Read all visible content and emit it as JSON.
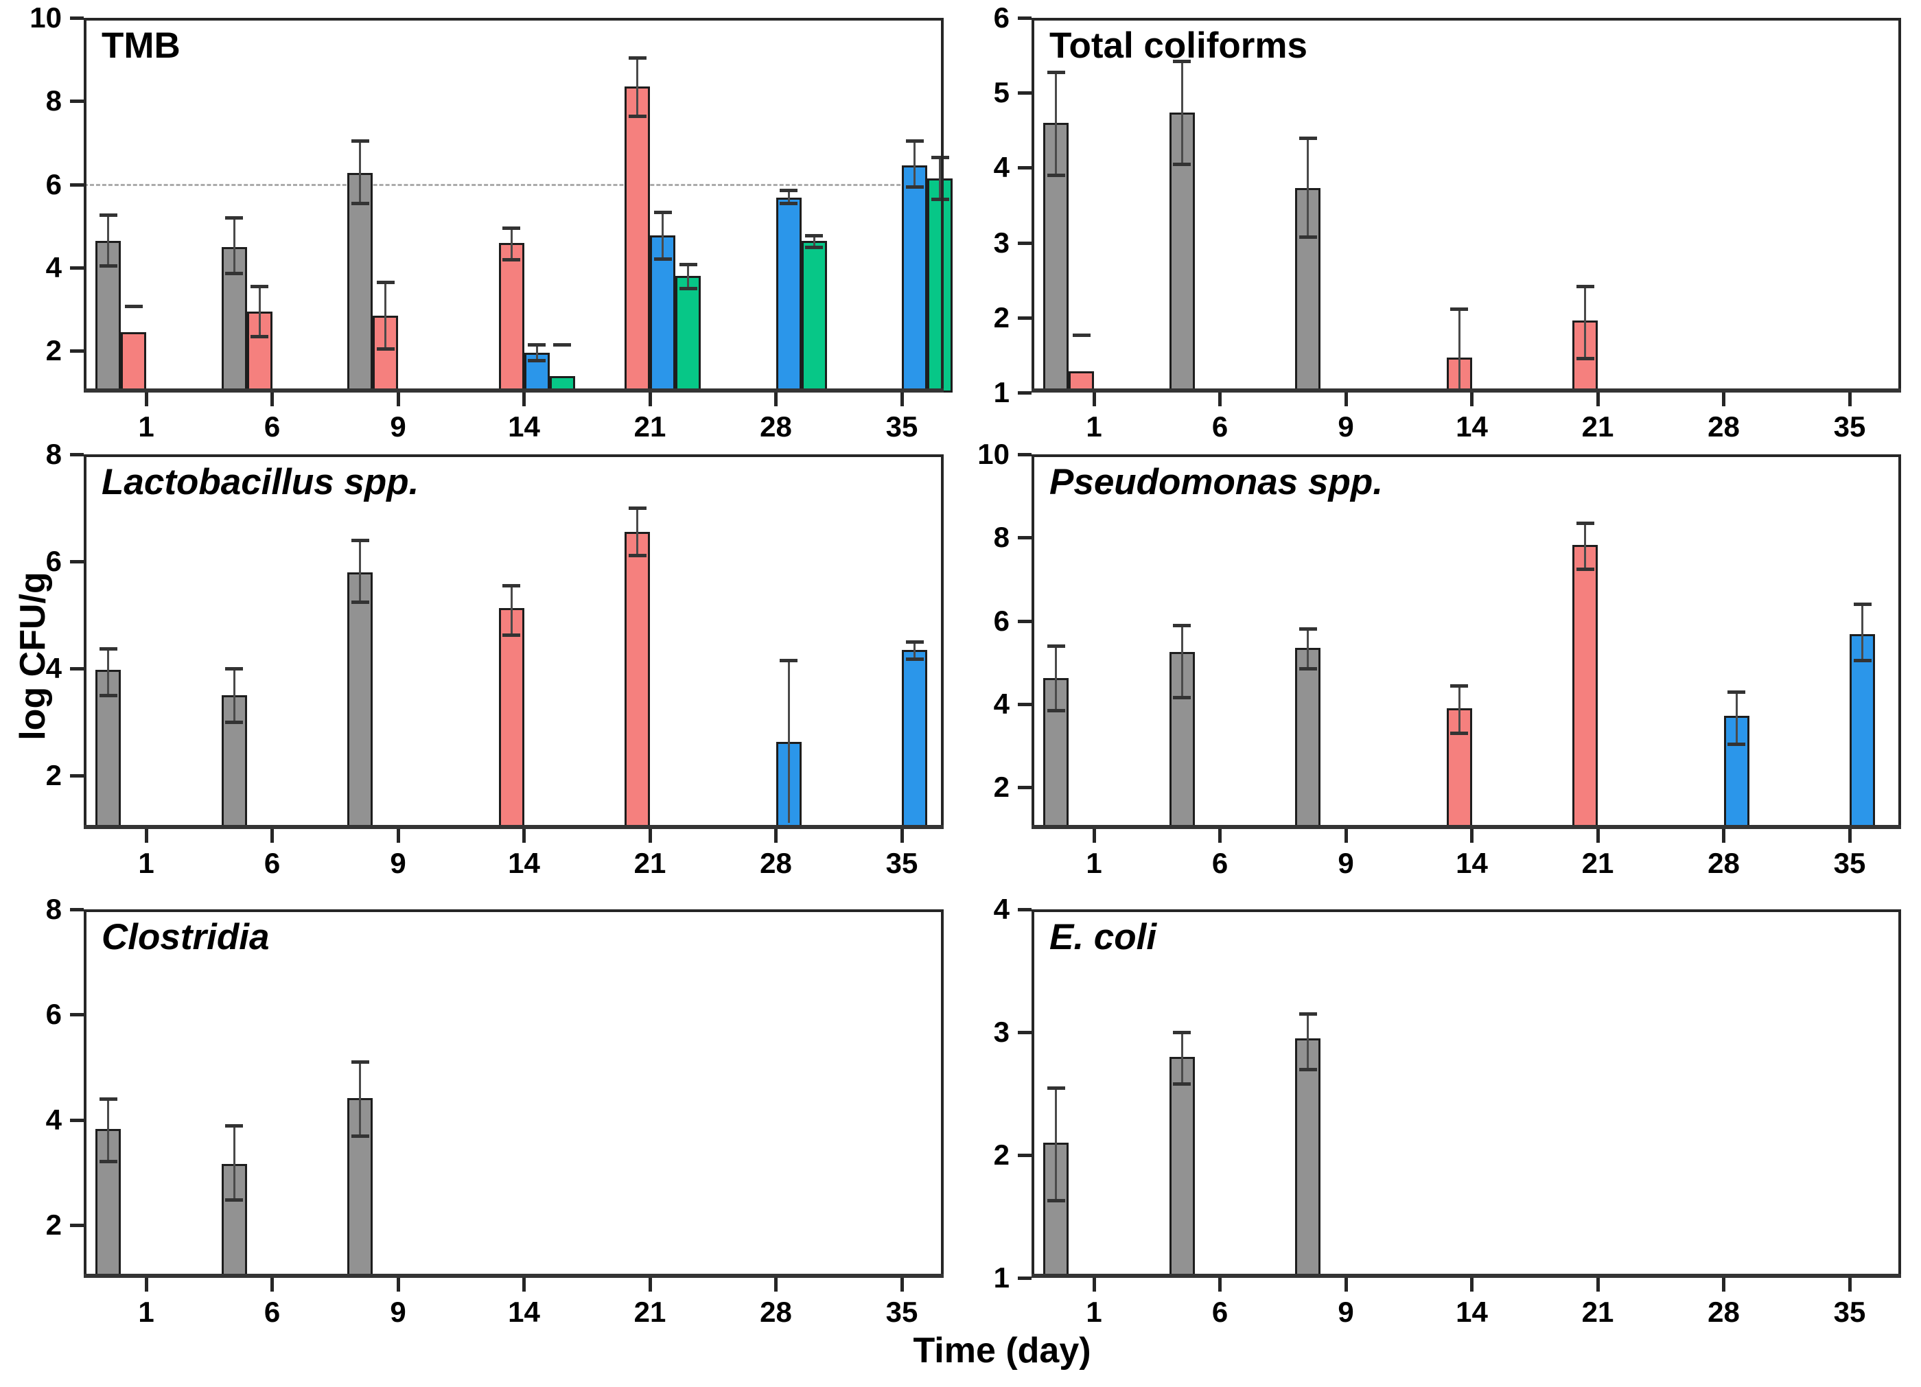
{
  "figure": {
    "ylabel": "log CFU/g",
    "xlabel": "Time (day)"
  },
  "chart_data": {
    "type": "bar",
    "layout": "3-rows-2-cols-grid",
    "title": "",
    "xlabel": "Time (day)",
    "ylabel": "log CFU/g",
    "categories": [
      1,
      6,
      9,
      14,
      21,
      28,
      35
    ],
    "grid": "off",
    "legend": "none",
    "series": [
      {
        "key": "gray",
        "color": "#929292"
      },
      {
        "key": "red",
        "color": "#F5807E"
      },
      {
        "key": "blue",
        "color": "#2B96EA"
      },
      {
        "key": "green",
        "color": "#07C787"
      }
    ],
    "refline_color": "#ababab",
    "panels": [
      {
        "title": "TMB",
        "italic": false,
        "row": 0,
        "col": 0,
        "ylim": [
          1,
          10
        ],
        "yticks": [
          2,
          4,
          6,
          8,
          10
        ],
        "refline": 6,
        "bars": [
          {
            "day": 1,
            "series": "gray",
            "value": 4.65,
            "err_lo": 4.05,
            "err_hi": 5.27
          },
          {
            "day": 1,
            "series": "red",
            "value": 2.45,
            "err_hi": 3.08,
            "cap_only": true
          },
          {
            "day": 6,
            "series": "gray",
            "value": 4.5,
            "err_lo": 3.87,
            "err_hi": 5.2
          },
          {
            "day": 6,
            "series": "red",
            "value": 2.95,
            "err_lo": 2.35,
            "err_hi": 3.55
          },
          {
            "day": 9,
            "series": "gray",
            "value": 6.28,
            "err_lo": 5.55,
            "err_hi": 7.05
          },
          {
            "day": 9,
            "series": "red",
            "value": 2.85,
            "err_lo": 2.05,
            "err_hi": 3.65
          },
          {
            "day": 14,
            "series": "red",
            "value": 4.6,
            "err_lo": 4.2,
            "err_hi": 4.95
          },
          {
            "day": 14,
            "series": "blue",
            "value": 1.95,
            "err_lo": 1.78,
            "err_hi": 2.15
          },
          {
            "day": 14,
            "series": "green",
            "value": 1.4,
            "err_hi": 2.15,
            "cap_only": true
          },
          {
            "day": 21,
            "series": "red",
            "value": 8.35,
            "err_lo": 7.65,
            "err_hi": 9.05
          },
          {
            "day": 21,
            "series": "blue",
            "value": 4.78,
            "err_lo": 4.22,
            "err_hi": 5.33
          },
          {
            "day": 21,
            "series": "green",
            "value": 3.8,
            "err_lo": 3.5,
            "err_hi": 4.08
          },
          {
            "day": 28,
            "series": "blue",
            "value": 5.68,
            "err_lo": 5.55,
            "err_hi": 5.86
          },
          {
            "day": 28,
            "series": "green",
            "value": 4.65,
            "err_lo": 4.5,
            "err_hi": 4.78
          },
          {
            "day": 35,
            "series": "blue",
            "value": 6.45,
            "err_lo": 5.95,
            "err_hi": 7.05
          },
          {
            "day": 35,
            "series": "green",
            "value": 6.15,
            "err_lo": 5.65,
            "err_hi": 6.65
          }
        ]
      },
      {
        "title": "Total coliforms",
        "italic": false,
        "row": 0,
        "col": 1,
        "ylim": [
          1,
          6
        ],
        "yticks": [
          1,
          2,
          3,
          4,
          5,
          6
        ],
        "bars": [
          {
            "day": 1,
            "series": "gray",
            "value": 4.6,
            "err_lo": 3.9,
            "err_hi": 5.28
          },
          {
            "day": 1,
            "series": "red",
            "value": 1.28,
            "err_hi": 1.77,
            "cap_only": true
          },
          {
            "day": 6,
            "series": "gray",
            "value": 4.74,
            "err_lo": 4.05,
            "err_hi": 5.42
          },
          {
            "day": 9,
            "series": "gray",
            "value": 3.73,
            "err_lo": 3.08,
            "err_hi": 4.4
          },
          {
            "day": 14,
            "series": "red",
            "value": 1.47,
            "err_lo": 1.02,
            "err_hi": 2.12,
            "no_lo_cap": true
          },
          {
            "day": 21,
            "series": "red",
            "value": 1.96,
            "err_lo": 1.46,
            "err_hi": 2.42
          }
        ]
      },
      {
        "title": "Lactobacillus spp.",
        "italic": true,
        "row": 1,
        "col": 0,
        "ylim": [
          1,
          8
        ],
        "yticks": [
          2,
          4,
          6,
          8
        ],
        "bars": [
          {
            "day": 1,
            "series": "gray",
            "value": 3.97,
            "err_lo": 3.5,
            "err_hi": 4.37
          },
          {
            "day": 6,
            "series": "gray",
            "value": 3.5,
            "err_lo": 3.0,
            "err_hi": 4.0
          },
          {
            "day": 9,
            "series": "gray",
            "value": 5.8,
            "err_lo": 5.25,
            "err_hi": 6.4
          },
          {
            "day": 14,
            "series": "red",
            "value": 5.13,
            "err_lo": 4.63,
            "err_hi": 5.55
          },
          {
            "day": 21,
            "series": "red",
            "value": 6.55,
            "err_lo": 6.12,
            "err_hi": 7.0
          },
          {
            "day": 28,
            "series": "blue",
            "value": 2.63,
            "err_lo": 1.12,
            "err_hi": 4.15,
            "no_lo_cap": true
          },
          {
            "day": 35,
            "series": "blue",
            "value": 4.35,
            "err_lo": 4.18,
            "err_hi": 4.5
          }
        ]
      },
      {
        "title": "Pseudomonas spp.",
        "italic": true,
        "row": 1,
        "col": 1,
        "ylim": [
          1,
          10
        ],
        "yticks": [
          2,
          4,
          6,
          8,
          10
        ],
        "bars": [
          {
            "day": 1,
            "series": "gray",
            "value": 4.63,
            "err_lo": 3.85,
            "err_hi": 5.4
          },
          {
            "day": 6,
            "series": "gray",
            "value": 5.25,
            "err_lo": 4.17,
            "err_hi": 5.9
          },
          {
            "day": 9,
            "series": "gray",
            "value": 5.35,
            "err_lo": 4.85,
            "err_hi": 5.82
          },
          {
            "day": 14,
            "series": "red",
            "value": 3.9,
            "err_lo": 3.3,
            "err_hi": 4.45
          },
          {
            "day": 21,
            "series": "red",
            "value": 7.83,
            "err_lo": 7.25,
            "err_hi": 8.35
          },
          {
            "day": 28,
            "series": "blue",
            "value": 3.72,
            "err_lo": 3.05,
            "err_hi": 4.3
          },
          {
            "day": 35,
            "series": "blue",
            "value": 5.68,
            "err_lo": 5.05,
            "err_hi": 6.4
          }
        ]
      },
      {
        "title": "Clostridia",
        "italic": true,
        "row": 2,
        "col": 0,
        "ylim": [
          1,
          8
        ],
        "yticks": [
          2,
          4,
          6,
          8
        ],
        "bars": [
          {
            "day": 1,
            "series": "gray",
            "value": 3.83,
            "err_lo": 3.22,
            "err_hi": 4.4
          },
          {
            "day": 6,
            "series": "gray",
            "value": 3.17,
            "err_lo": 2.48,
            "err_hi": 3.9
          },
          {
            "day": 9,
            "series": "gray",
            "value": 4.42,
            "err_lo": 3.7,
            "err_hi": 5.1
          }
        ]
      },
      {
        "title": "E. coli",
        "italic": true,
        "row": 2,
        "col": 1,
        "ylim": [
          1,
          4
        ],
        "yticks": [
          1,
          2,
          3,
          4
        ],
        "bars": [
          {
            "day": 1,
            "series": "gray",
            "value": 2.1,
            "err_lo": 1.63,
            "err_hi": 2.55
          },
          {
            "day": 6,
            "series": "gray",
            "value": 2.8,
            "err_lo": 2.58,
            "err_hi": 3.0
          },
          {
            "day": 9,
            "series": "gray",
            "value": 2.95,
            "err_lo": 2.7,
            "err_hi": 3.15
          }
        ]
      }
    ]
  }
}
